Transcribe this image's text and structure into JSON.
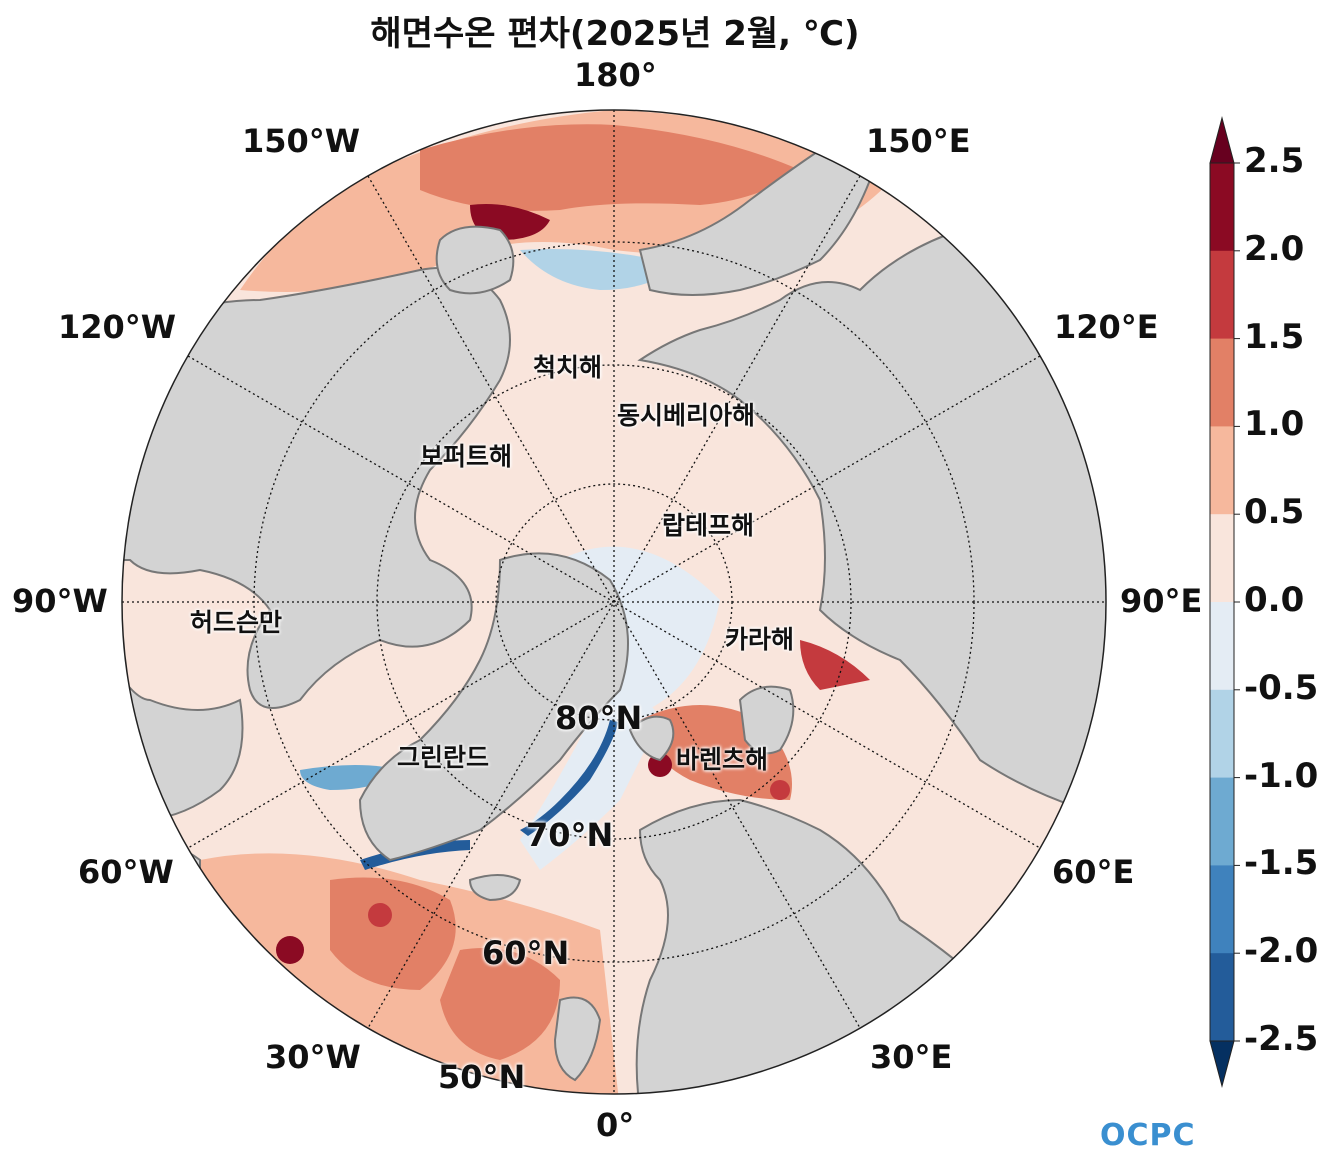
{
  "title": "해면수온 편차(2025년 2월, ℃)",
  "longitude_labels": {
    "lon_180": "180°",
    "lon_150w": "150°W",
    "lon_150e": "150°E",
    "lon_120w": "120°W",
    "lon_120e": "120°E",
    "lon_90w": "90°W",
    "lon_90e": "90°E",
    "lon_60w": "60°W",
    "lon_60e": "60°E",
    "lon_30w": "30°W",
    "lon_30e": "30°E",
    "lon_0": "0°"
  },
  "latitude_labels": {
    "lat_80": "80°N",
    "lat_70": "70°N",
    "lat_60": "60°N",
    "lat_50": "50°N"
  },
  "sea_labels": {
    "chukchi": "척치해",
    "east_siberian": "동시베리아해",
    "beaufort": "보퍼트해",
    "laptev": "랍테프해",
    "hudson": "허드슨만",
    "kara": "카라해",
    "greenland": "그린란드",
    "barents": "바렌츠해"
  },
  "colorbar": {
    "ticks": [
      "2.5",
      "2.0",
      "1.5",
      "1.0",
      "0.5",
      "0.0",
      "-0.5",
      "-1.0",
      "-1.5",
      "-2.0",
      "-2.5"
    ],
    "colors": [
      "#67001f",
      "#b2182b",
      "#d6604d",
      "#f4a582",
      "#fddbc7",
      "#f7f7f7",
      "#d1e5f0",
      "#92c5de",
      "#4393c3",
      "#2166ac",
      "#053061"
    ],
    "bins_top_to_bottom": [
      "#8b0a23",
      "#c43a3e",
      "#e28066",
      "#f6b89d",
      "#f9e5dc",
      "#e4ecf4",
      "#b1d3e7",
      "#6eaad1",
      "#3f82bd",
      "#235c9a"
    ]
  },
  "land_color": "#d3d3d3",
  "coast_color": "#777777",
  "logo_text": "OCPC"
}
